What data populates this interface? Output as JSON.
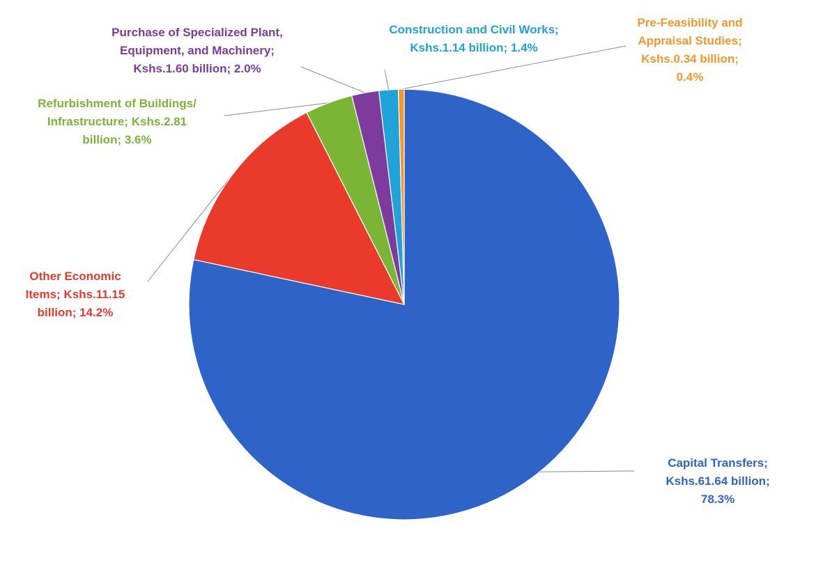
{
  "chart_data": {
    "type": "pie",
    "title": "",
    "start_angle_deg": 0,
    "direction": "clockwise",
    "slices": [
      {
        "label": "Capital Transfers",
        "value_text": "Kshs.61.64 billion",
        "value": 61.64,
        "percent": 78.3,
        "percent_text": "78.3%",
        "color": "#2E64C8",
        "label_lines": [
          "Capital Transfers;",
          "Kshs.61.64 billion;",
          "78.3%"
        ]
      },
      {
        "label": "Other Economic Items",
        "value_text": "Kshs.11.15 billion",
        "value": 11.15,
        "percent": 14.2,
        "percent_text": "14.2%",
        "color": "#EA3A2B",
        "label_lines": [
          "Other Economic",
          "Items; Kshs.11.15",
          "billion; 14.2%"
        ]
      },
      {
        "label": "Refurbishment of Buildings/ Infrastructure",
        "value_text": "Kshs.2.81 billion",
        "value": 2.81,
        "percent": 3.6,
        "percent_text": "3.6%",
        "color": "#7AB536",
        "label_lines": [
          "Refurbishment of Buildings/",
          "Infrastructure; Kshs.2.81",
          "billion; 3.6%"
        ]
      },
      {
        "label": "Purchase of Specialized Plant, Equipment, and Machinery",
        "value_text": "Kshs.1.60 billion",
        "value": 1.6,
        "percent": 2.0,
        "percent_text": "2.0%",
        "color": "#7D3B9E",
        "label_lines": [
          "Purchase of Specialized Plant,",
          "Equipment, and Machinery;",
          "Kshs.1.60 billion; 2.0%"
        ]
      },
      {
        "label": "Construction and Civil Works",
        "value_text": "Kshs.1.14 billion",
        "value": 1.14,
        "percent": 1.4,
        "percent_text": "1.4%",
        "color": "#1FA3D9",
        "label_lines": [
          "Construction and Civil Works;",
          "Kshs.1.14 billion; 1.4%"
        ]
      },
      {
        "label": "Pre-Feasibility and Appraisal Studies",
        "value_text": "Kshs.0.34 billion",
        "value": 0.34,
        "percent": 0.4,
        "percent_text": "0.4%",
        "color": "#F7962B",
        "label_lines": [
          "Pre-Feasibility and",
          "Appraisal Studies;",
          "Kshs.0.34 billion;",
          "0.4%"
        ]
      }
    ]
  }
}
